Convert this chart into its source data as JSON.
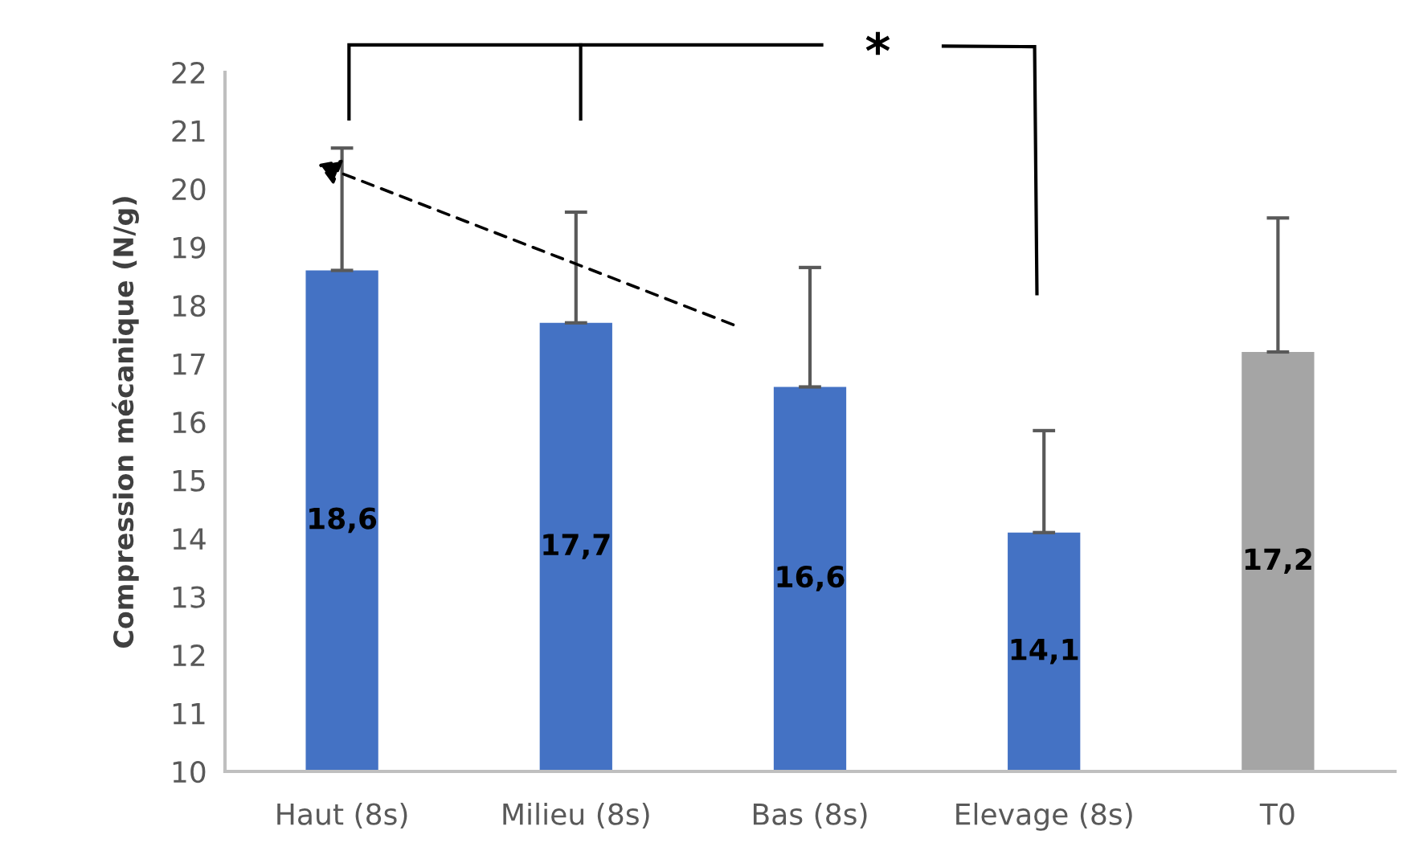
{
  "chart_data": {
    "type": "bar",
    "ylabel": "Compression mécanique (N/g)",
    "categories": [
      "Haut (8s)",
      "Milieu (8s)",
      "Bas (8s)",
      "Elevage (8s)",
      "T0"
    ],
    "values": [
      18.6,
      17.7,
      16.6,
      14.1,
      17.2
    ],
    "colors": [
      "#4472c4",
      "#4472c4",
      "#4472c4",
      "#4472c4",
      "#a5a5a5"
    ],
    "value_labels": [
      "18,6",
      "17,7",
      "16,6",
      "14,1",
      "17,2"
    ],
    "errors": [
      [
        18.6,
        20.7
      ],
      [
        17.7,
        19.6
      ],
      [
        16.6,
        18.65
      ],
      [
        14.1,
        15.85
      ],
      [
        17.2,
        19.5
      ]
    ],
    "ylim": [
      10,
      22
    ],
    "yticks": [
      10,
      11,
      12,
      13,
      14,
      15,
      16,
      17,
      18,
      19,
      20,
      21,
      22
    ],
    "grid": false,
    "legend": false,
    "annotations": [
      "*"
    ]
  }
}
